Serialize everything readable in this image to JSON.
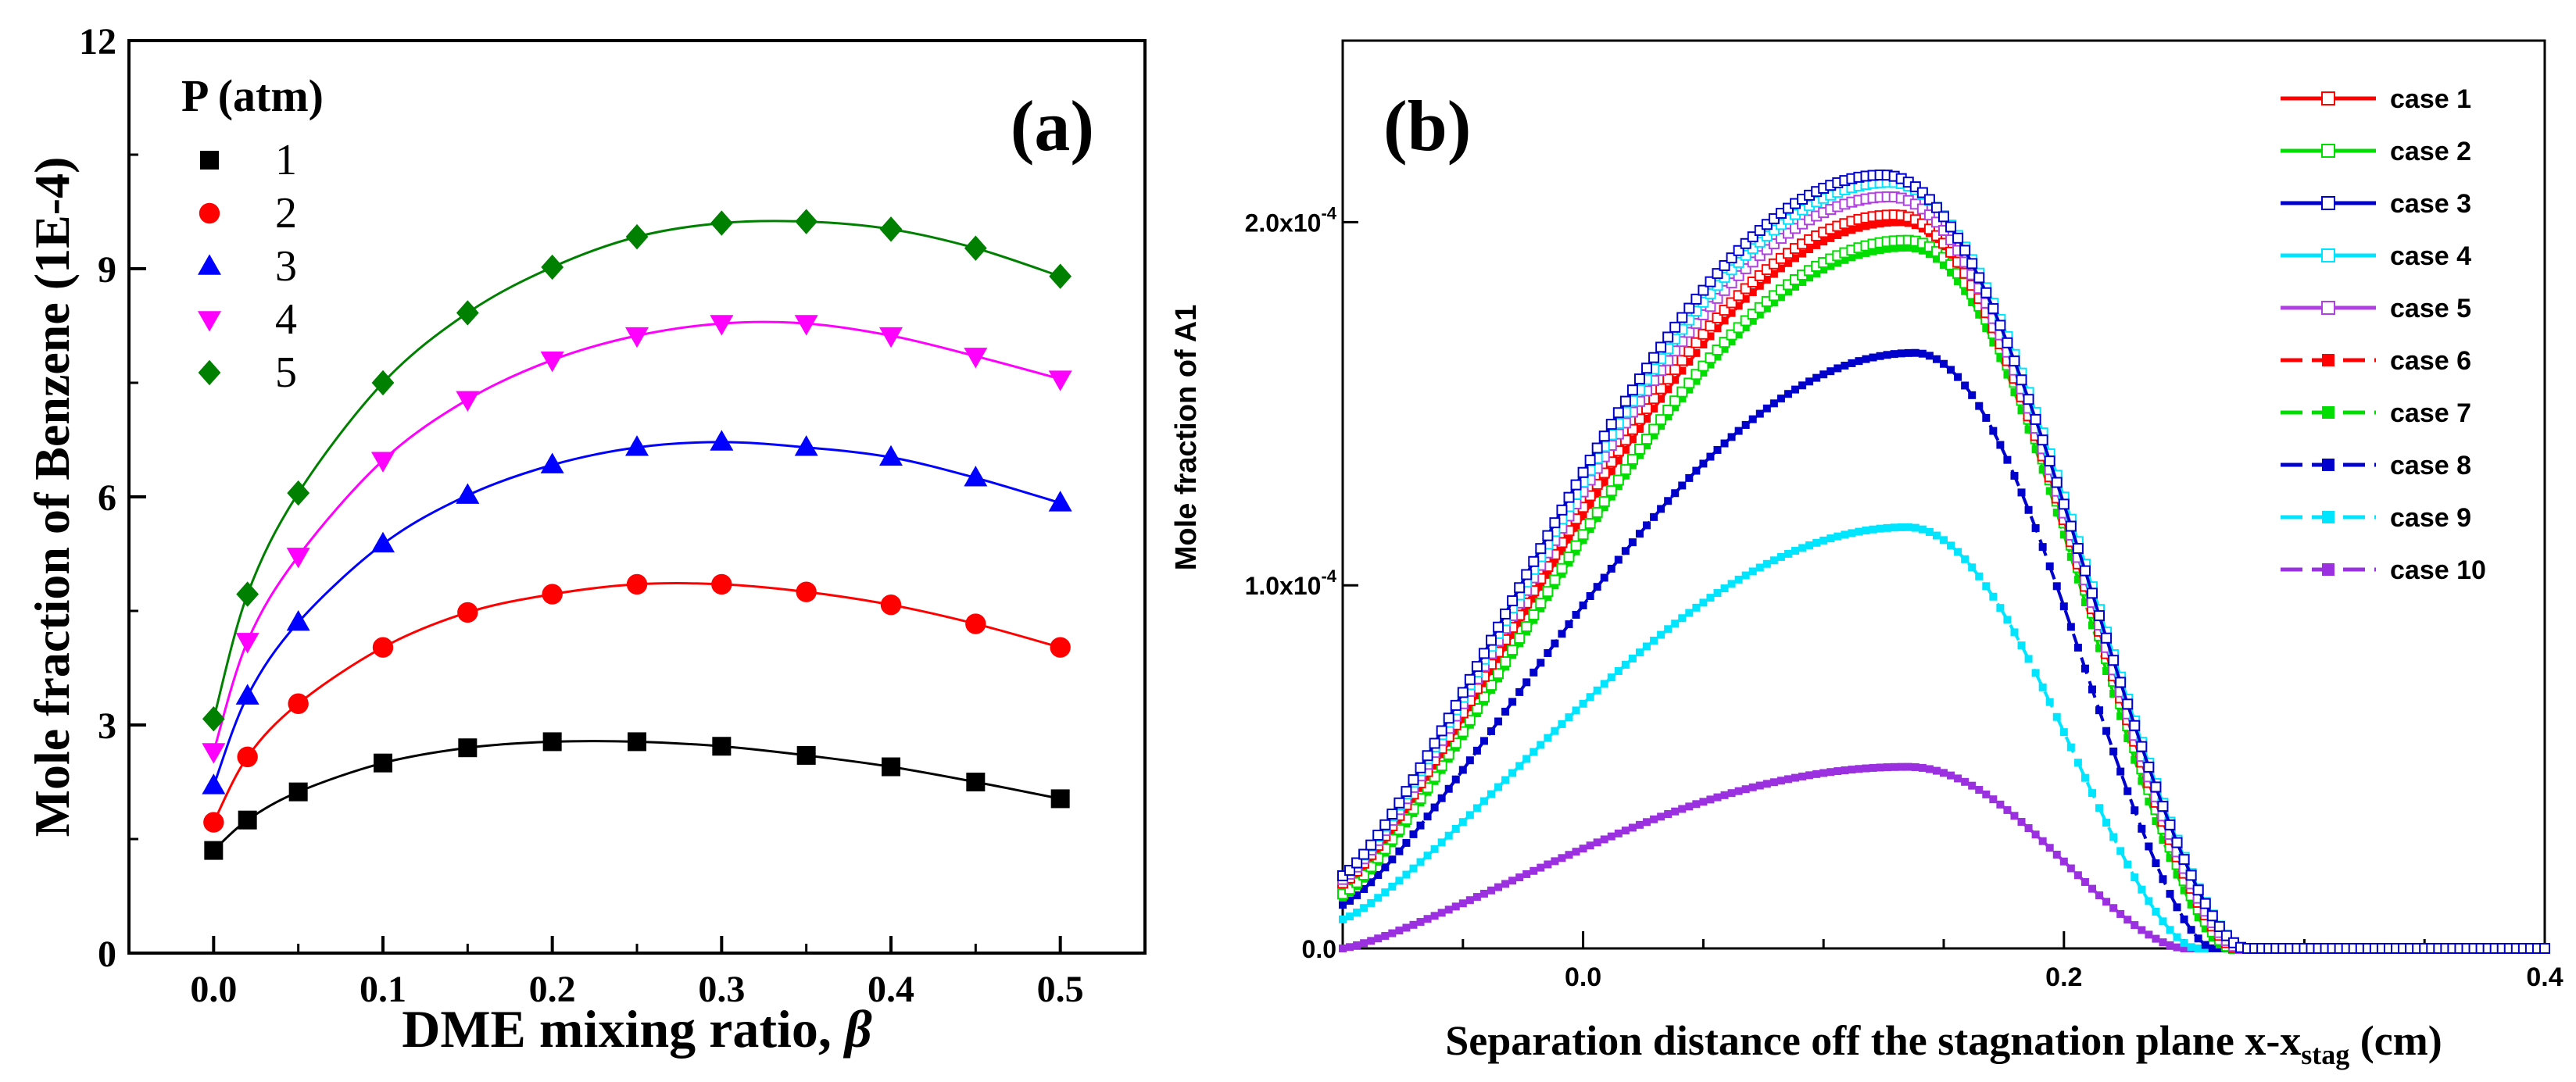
{
  "chart_data": [
    {
      "panel_label": "(a)",
      "type": "line",
      "xlabel": "DME mixing ratio, ",
      "xlabel_symbol": "β",
      "ylabel": "Mole fraction of Benzene (1E-4)",
      "xlim": [
        -0.05,
        0.55
      ],
      "ylim": [
        0,
        12
      ],
      "x_ticks": [
        "0.0",
        "0.1",
        "0.2",
        "0.3",
        "0.4",
        "0.5"
      ],
      "y_ticks": [
        "0",
        "3",
        "6",
        "9",
        "12"
      ],
      "legend_title": "P (atm)",
      "legend_position": "top-left",
      "x": [
        0.0,
        0.02,
        0.05,
        0.1,
        0.15,
        0.2,
        0.25,
        0.3,
        0.35,
        0.4,
        0.45,
        0.5
      ],
      "series": [
        {
          "name": "1",
          "color": "#000000",
          "marker": "square",
          "values": [
            1.35,
            1.75,
            2.12,
            2.5,
            2.7,
            2.78,
            2.78,
            2.72,
            2.6,
            2.45,
            2.25,
            2.03
          ]
        },
        {
          "name": "2",
          "color": "#ff0000",
          "marker": "circle",
          "values": [
            1.72,
            2.58,
            3.28,
            4.02,
            4.48,
            4.72,
            4.85,
            4.85,
            4.75,
            4.58,
            4.33,
            4.02
          ]
        },
        {
          "name": "3",
          "color": "#0000ff",
          "marker": "triangle-up",
          "values": [
            2.2,
            3.38,
            4.35,
            5.38,
            6.02,
            6.42,
            6.65,
            6.72,
            6.65,
            6.52,
            6.25,
            5.92
          ]
        },
        {
          "name": "4",
          "color": "#ff00ff",
          "marker": "triangle-down",
          "values": [
            2.65,
            4.1,
            5.22,
            6.48,
            7.28,
            7.8,
            8.12,
            8.28,
            8.28,
            8.12,
            7.85,
            7.55
          ]
        },
        {
          "name": "5",
          "color": "#008000",
          "marker": "diamond",
          "values": [
            3.08,
            4.72,
            6.05,
            7.5,
            8.42,
            9.02,
            9.42,
            9.6,
            9.62,
            9.52,
            9.27,
            8.9
          ]
        }
      ]
    },
    {
      "panel_label": "(b)",
      "type": "line",
      "xlabel": "Separation distance off the stagnation plane x-x",
      "xlabel_sub": "stag",
      "xlabel_unit": " (cm)",
      "ylabel": "Mole fraction of A1",
      "xlim": [
        -0.1,
        0.4
      ],
      "ylim": [
        0,
        0.00025
      ],
      "x_ticks": [
        "0.0",
        "0.2",
        "0.4"
      ],
      "y_ticks": [
        {
          "base": "0.0",
          "exp": ""
        },
        {
          "base": "1.0x10",
          "exp": "-4"
        },
        {
          "base": "2.0x10",
          "exp": "-4"
        }
      ],
      "legend_position": "top-right",
      "series": [
        {
          "name": "case 1",
          "color": "#ff0000",
          "style": "solid",
          "marker": "open-square",
          "peak": 0.000202,
          "peak_x": 0.13,
          "start": 1.8e-05,
          "end_x": 0.272
        },
        {
          "name": "case 2",
          "color": "#00dd00",
          "style": "solid",
          "marker": "open-square",
          "peak": 0.000195,
          "peak_x": 0.135,
          "start": 1.5e-05,
          "end_x": 0.27
        },
        {
          "name": "case 3",
          "color": "#0000cc",
          "style": "solid",
          "marker": "open-square",
          "peak": 0.000213,
          "peak_x": 0.125,
          "start": 2e-05,
          "end_x": 0.275
        },
        {
          "name": "case 4",
          "color": "#00e5ff",
          "style": "solid",
          "marker": "open-square",
          "peak": 0.000211,
          "peak_x": 0.128,
          "start": 2e-05,
          "end_x": 0.275
        },
        {
          "name": "case 5",
          "color": "#b040e0",
          "style": "solid",
          "marker": "open-square",
          "peak": 0.000207,
          "peak_x": 0.128,
          "start": 1.9e-05,
          "end_x": 0.273
        },
        {
          "name": "case 6",
          "color": "#ff0000",
          "style": "dashed",
          "marker": "filled-square",
          "peak": 0.0002,
          "peak_x": 0.132,
          "start": 1.7e-05,
          "end_x": 0.27
        },
        {
          "name": "case 7",
          "color": "#00dd00",
          "style": "dashed",
          "marker": "filled-square",
          "peak": 0.000193,
          "peak_x": 0.135,
          "start": 1.4e-05,
          "end_x": 0.268
        },
        {
          "name": "case 8",
          "color": "#0000cc",
          "style": "dashed",
          "marker": "filled-square",
          "peak": 0.000164,
          "peak_x": 0.138,
          "start": 1.2e-05,
          "end_x": 0.262
        },
        {
          "name": "case 9",
          "color": "#00e5ff",
          "style": "dashed",
          "marker": "filled-square",
          "peak": 0.000116,
          "peak_x": 0.135,
          "start": 8e-06,
          "end_x": 0.255
        },
        {
          "name": "case 10",
          "color": "#9a30e0",
          "style": "dashed",
          "marker": "filled-square",
          "peak": 5e-05,
          "peak_x": 0.135,
          "start": 0.0,
          "end_x": 0.25
        }
      ]
    }
  ]
}
